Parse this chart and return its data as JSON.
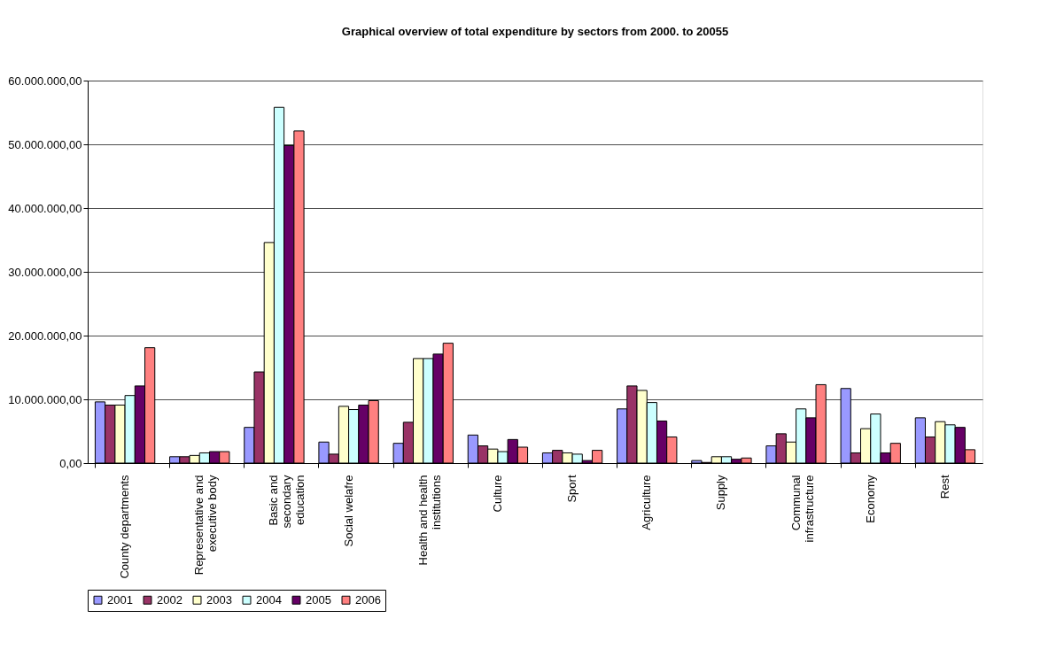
{
  "chart_data": {
    "type": "bar",
    "title": "Graphical overview of total expenditure by sectors from 2000. to 20055",
    "categories": [
      "County departments",
      "Representative and\nexecutive body",
      "Basic and\nsecondary\neducation",
      "Social welafre",
      "Health and health\ninstitutions",
      "Culture",
      "Sport",
      "Agriculture",
      "Supply",
      "Communal\ninfrastructure",
      "Economy",
      "Rest"
    ],
    "series": [
      {
        "name": "2001",
        "color": "#9999ff",
        "values": [
          9600000,
          1000000,
          5600000,
          3300000,
          3100000,
          4400000,
          1600000,
          8500000,
          400000,
          2700000,
          11700000,
          7100000
        ]
      },
      {
        "name": "2002",
        "color": "#993366",
        "values": [
          9100000,
          1000000,
          14300000,
          1400000,
          6400000,
          2700000,
          2000000,
          12100000,
          100000,
          4600000,
          1600000,
          4100000
        ]
      },
      {
        "name": "2003",
        "color": "#ffffcc",
        "values": [
          9100000,
          1200000,
          34600000,
          8900000,
          16400000,
          2200000,
          1600000,
          11400000,
          1000000,
          3300000,
          5400000,
          6500000
        ]
      },
      {
        "name": "2004",
        "color": "#ccffff",
        "values": [
          10600000,
          1600000,
          55800000,
          8400000,
          16400000,
          1800000,
          1400000,
          9500000,
          1000000,
          8500000,
          7700000,
          6000000
        ]
      },
      {
        "name": "2005",
        "color": "#660066",
        "values": [
          12100000,
          1800000,
          49800000,
          9100000,
          17100000,
          3700000,
          400000,
          6600000,
          600000,
          7100000,
          1600000,
          5600000
        ]
      },
      {
        "name": "2006",
        "color": "#ff8080",
        "values": [
          18100000,
          1800000,
          52100000,
          9800000,
          18800000,
          2500000,
          2000000,
          4100000,
          800000,
          12300000,
          3100000,
          2100000
        ]
      }
    ],
    "ylim": [
      0,
      60000000
    ],
    "yticks": [
      {
        "value": 0,
        "label": "0,00"
      },
      {
        "value": 10000000,
        "label": "10.000.000,00"
      },
      {
        "value": 20000000,
        "label": "20.000.000,00"
      },
      {
        "value": 30000000,
        "label": "30.000.000,00"
      },
      {
        "value": 40000000,
        "label": "40.000.000,00"
      },
      {
        "value": 50000000,
        "label": "50.000.000,00"
      },
      {
        "value": 60000000,
        "label": "60.000.000,00"
      }
    ],
    "grid": "y",
    "legend": "bottom"
  }
}
